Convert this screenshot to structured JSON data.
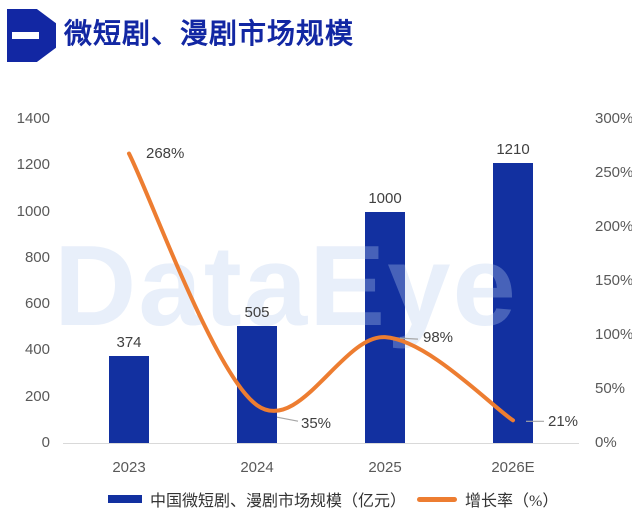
{
  "header": {
    "title": "微短剧、漫剧市场规模"
  },
  "watermark": "DataEye",
  "chart_data": {
    "type": "combo_bar_line",
    "title": "微短剧、漫剧市场规模",
    "categories": [
      "2023",
      "2024",
      "2025",
      "2026E"
    ],
    "series": [
      {
        "name": "中国微短剧、漫剧市场规模（亿元）",
        "type": "bar",
        "axis": "left",
        "color": "#1230A0",
        "values": [
          374,
          505,
          1000,
          1210
        ],
        "data_labels": [
          "374",
          "505",
          "1000",
          "1210"
        ]
      },
      {
        "name": "增长率（%）",
        "type": "line",
        "axis": "right",
        "color": "#ED7D31",
        "values": [
          268,
          35,
          98,
          21
        ],
        "data_labels": [
          "268%",
          "35%",
          "98%",
          "21%"
        ]
      }
    ],
    "left_axis": {
      "min": 0,
      "max": 1400,
      "step": 200,
      "tick_labels": [
        "0",
        "200",
        "400",
        "600",
        "800",
        "1000",
        "1200",
        "1400"
      ]
    },
    "right_axis": {
      "min": 0,
      "max": 300,
      "step": 50,
      "tick_labels": [
        "0%",
        "50%",
        "100%",
        "150%",
        "200%",
        "250%",
        "300%"
      ]
    },
    "grid": false,
    "legend_position": "bottom"
  },
  "legend": {
    "items": [
      {
        "label": "中国微短剧、漫剧市场规模（亿元）",
        "marker": "bar-swatch",
        "color": "#1230A0"
      },
      {
        "label": "增长率（%）",
        "marker": "line-swatch",
        "color": "#ED7D31"
      }
    ]
  },
  "colors": {
    "title": "#1227A3",
    "badge": "#1227A3",
    "bar": "#1230A0",
    "line": "#ED7D31",
    "axis_text": "#595959",
    "data_label_text": "#404040",
    "legend_text": "#333333",
    "baseline": "#D9D9D9",
    "leader": "#A6A6A6",
    "watermark_rgba": "rgba(183,206,238,0.32)"
  }
}
